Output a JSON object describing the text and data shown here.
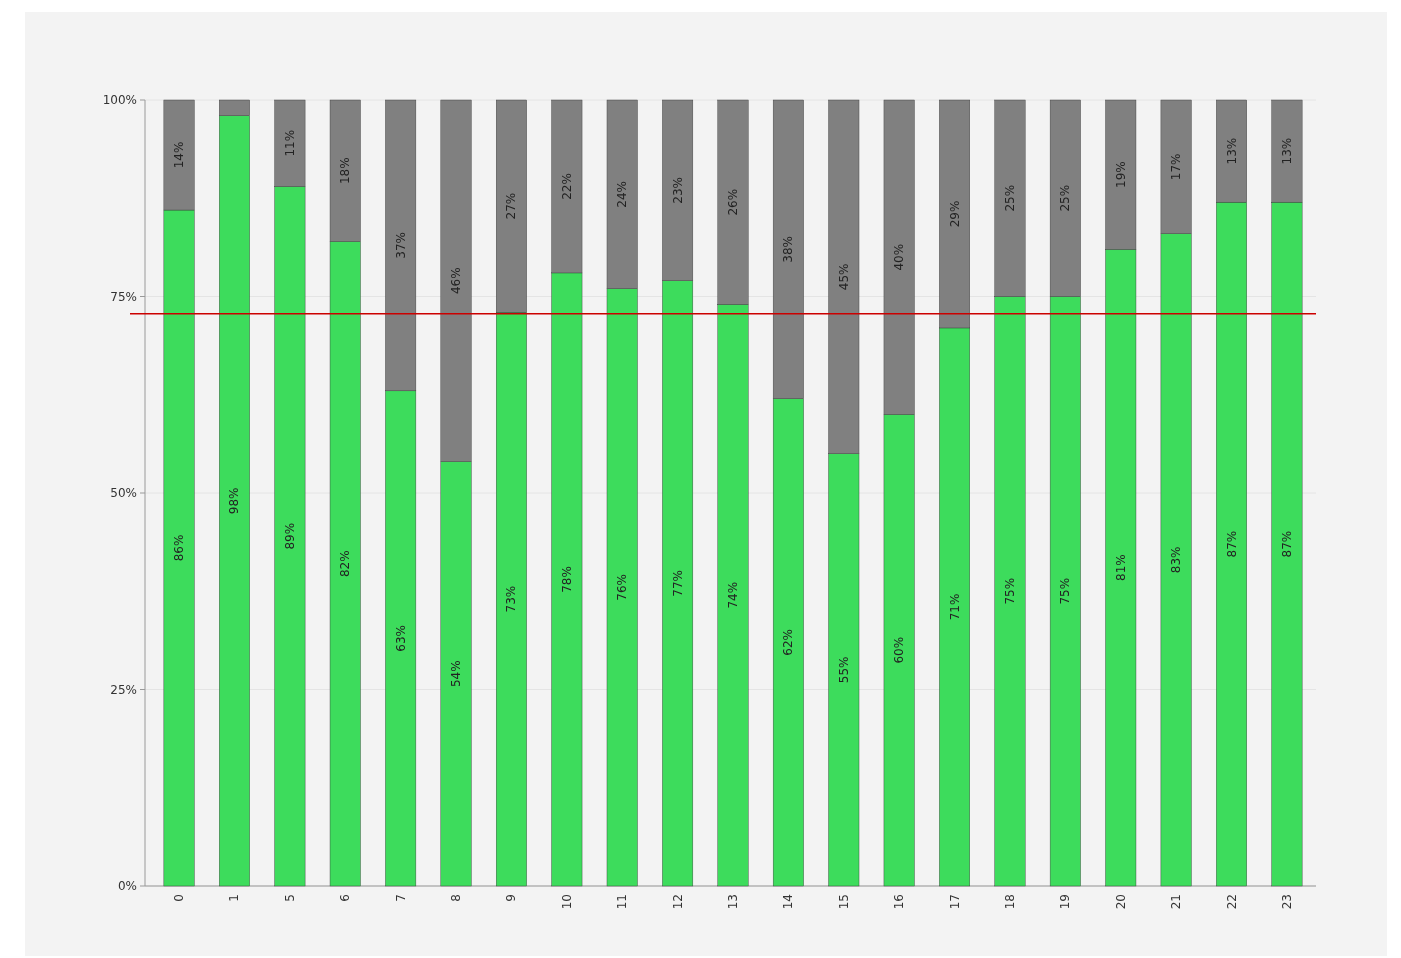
{
  "chart_data": {
    "type": "bar",
    "stacked": true,
    "categories": [
      "0",
      "1",
      "5",
      "6",
      "7",
      "8",
      "9",
      "10",
      "11",
      "12",
      "13",
      "14",
      "15",
      "16",
      "17",
      "18",
      "19",
      "20",
      "21",
      "22",
      "23"
    ],
    "series": [
      {
        "color": "#3ddc5c",
        "values": [
          86,
          98,
          89,
          82,
          63,
          54,
          73,
          78,
          76,
          77,
          74,
          62,
          55,
          60,
          71,
          75,
          75,
          81,
          83,
          87,
          87
        ],
        "value_labels": [
          "86%",
          "98%",
          "89%",
          "82%",
          "63%",
          "54%",
          "73%",
          "78%",
          "76%",
          "77%",
          "74%",
          "62%",
          "55%",
          "60%",
          "71%",
          "75%",
          "75%",
          "81%",
          "83%",
          "87%",
          "87%"
        ]
      },
      {
        "color": "#808080",
        "values": [
          14,
          2,
          11,
          18,
          37,
          46,
          27,
          22,
          24,
          23,
          26,
          38,
          45,
          40,
          29,
          25,
          25,
          19,
          17,
          13,
          13
        ],
        "value_labels": [
          "14%",
          null,
          "11%",
          "18%",
          "37%",
          "46%",
          "27%",
          "22%",
          "24%",
          "23%",
          "26%",
          "38%",
          "45%",
          "40%",
          "29%",
          "25%",
          "25%",
          "19%",
          "17%",
          "13%",
          "13%"
        ]
      }
    ],
    "ylim": [
      0,
      100
    ],
    "yticks": [
      {
        "value": 0,
        "label": "0%"
      },
      {
        "value": 25,
        "label": "25%"
      },
      {
        "value": 50,
        "label": "50%"
      },
      {
        "value": 75,
        "label": "75%"
      },
      {
        "value": 100,
        "label": "100%"
      }
    ],
    "grid": "y",
    "ref_lines": [
      {
        "axis": "y",
        "value": 72.8,
        "color": "#cc0000"
      }
    ]
  }
}
